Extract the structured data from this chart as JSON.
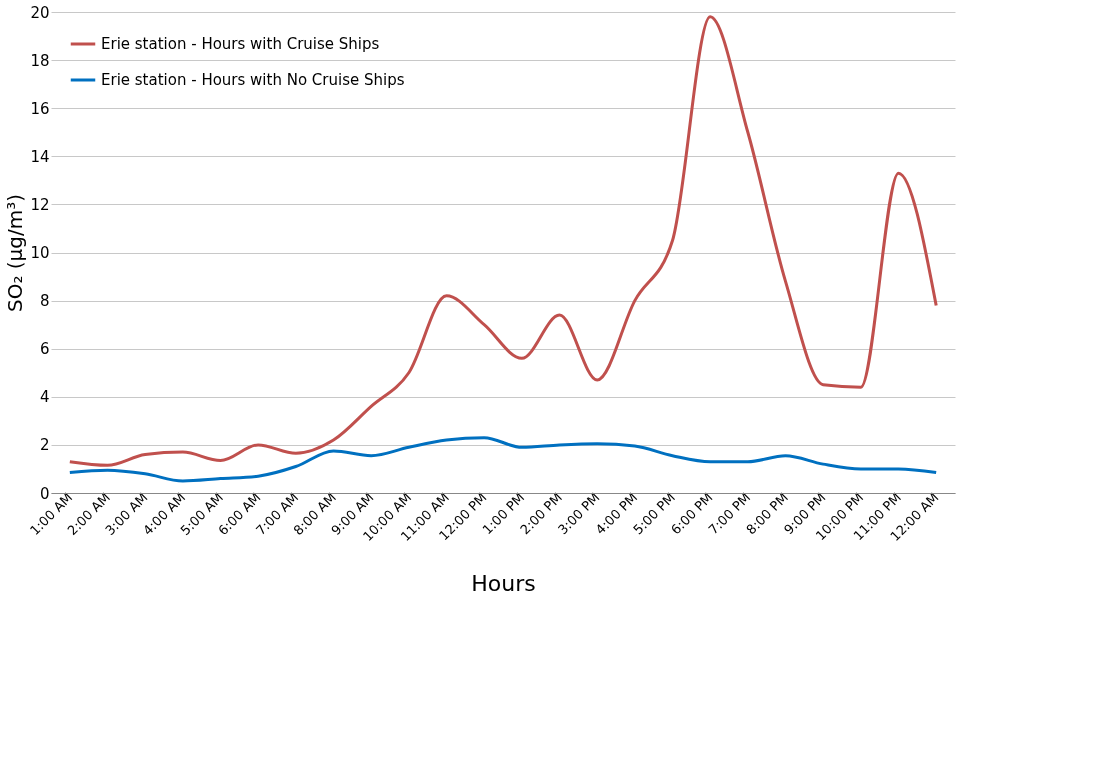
{
  "chart_data": {
    "type": "line",
    "xlabel": "Hours",
    "ylabel": "SO₂ (µg/m³)",
    "categories": [
      "1:00 AM",
      "2:00 AM",
      "3:00 AM",
      "4:00 AM",
      "5:00 AM",
      "6:00 AM",
      "7:00 AM",
      "8:00 AM",
      "9:00 AM",
      "10:00 AM",
      "11:00 AM",
      "12:00 PM",
      "1:00 PM",
      "2:00 PM",
      "3:00 PM",
      "4:00 PM",
      "5:00 PM",
      "6:00 PM",
      "7:00 PM",
      "8:00 PM",
      "9:00 PM",
      "10:00 PM",
      "11:00 PM",
      "12:00 AM"
    ],
    "series": [
      {
        "name": "Erie station - Hours with Cruise Ships",
        "color": "#c0504d",
        "values": [
          1.3,
          1.15,
          1.6,
          1.7,
          1.35,
          2.0,
          1.65,
          2.2,
          3.6,
          5.0,
          8.2,
          7.0,
          5.6,
          7.4,
          4.7,
          8.0,
          10.5,
          19.8,
          15.0,
          8.8,
          4.5,
          4.4,
          13.3,
          7.8
        ]
      },
      {
        "name": "Erie station - Hours with No Cruise Ships",
        "color": "#0070c0",
        "values": [
          0.85,
          0.95,
          0.8,
          0.5,
          0.6,
          0.7,
          1.1,
          1.75,
          1.55,
          1.9,
          2.2,
          2.3,
          1.9,
          2.0,
          2.05,
          1.95,
          1.55,
          1.3,
          1.3,
          1.55,
          1.2,
          1.0,
          1.0,
          0.85
        ]
      }
    ],
    "ylim": [
      0,
      20
    ],
    "yticks": [
      0,
      2,
      4,
      6,
      8,
      10,
      12,
      14,
      16,
      18,
      20
    ],
    "grid": "y",
    "legend": "top left",
    "marker": "none",
    "line_style": "solid"
  }
}
